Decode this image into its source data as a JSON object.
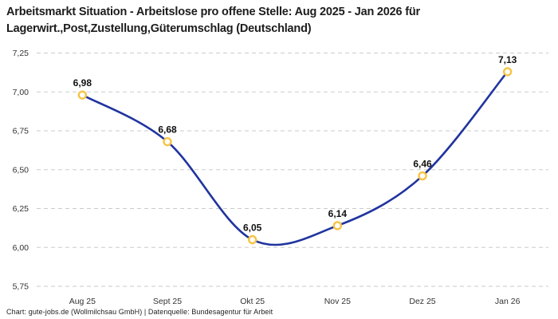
{
  "title": "Arbeitsmarkt Situation - Arbeitslose pro offene Stelle: Aug 2025 - Jan 2026 für Lagerwirt.,Post,Zustellung,Güterumschlag (Deutschland)",
  "footer": "Chart: gute-jobs.de (Wollmilchsau GmbH) | Datenquelle: Bundesagentur für Arbeit",
  "chart_data": {
    "type": "line",
    "title": "Arbeitsmarkt Situation - Arbeitslose pro offene Stelle: Aug 2025 - Jan 2026 für Lagerwirt.,Post,Zustellung,Güterumschlag (Deutschland)",
    "categories": [
      "Aug 25",
      "Sept 25",
      "Okt 25",
      "Nov 25",
      "Dez 25",
      "Jan 26"
    ],
    "values": [
      6.98,
      6.68,
      6.05,
      6.14,
      6.46,
      7.13
    ],
    "point_labels": [
      "6,98",
      "6,68",
      "6,05",
      "6,14",
      "6,46",
      "7,13"
    ],
    "xlabel": "",
    "ylabel": "",
    "ylim": [
      5.75,
      7.25
    ],
    "ytick_values": [
      7.25,
      7.0,
      6.75,
      6.5,
      6.25,
      6.0,
      5.75
    ],
    "ytick_labels": [
      "7,25",
      "7,00",
      "6,75",
      "6,50",
      "6,25",
      "6,00",
      "5,75"
    ],
    "grid": "horizontal-dashed",
    "legend": "none",
    "smooth": true,
    "line_color": "#20349f",
    "marker_ring_color": "#f6c344",
    "marker_fill_color": "#ffffff",
    "grid_color": "#cbcbcb",
    "tick_text_color": "#333333",
    "data_label_color": "#111111"
  }
}
